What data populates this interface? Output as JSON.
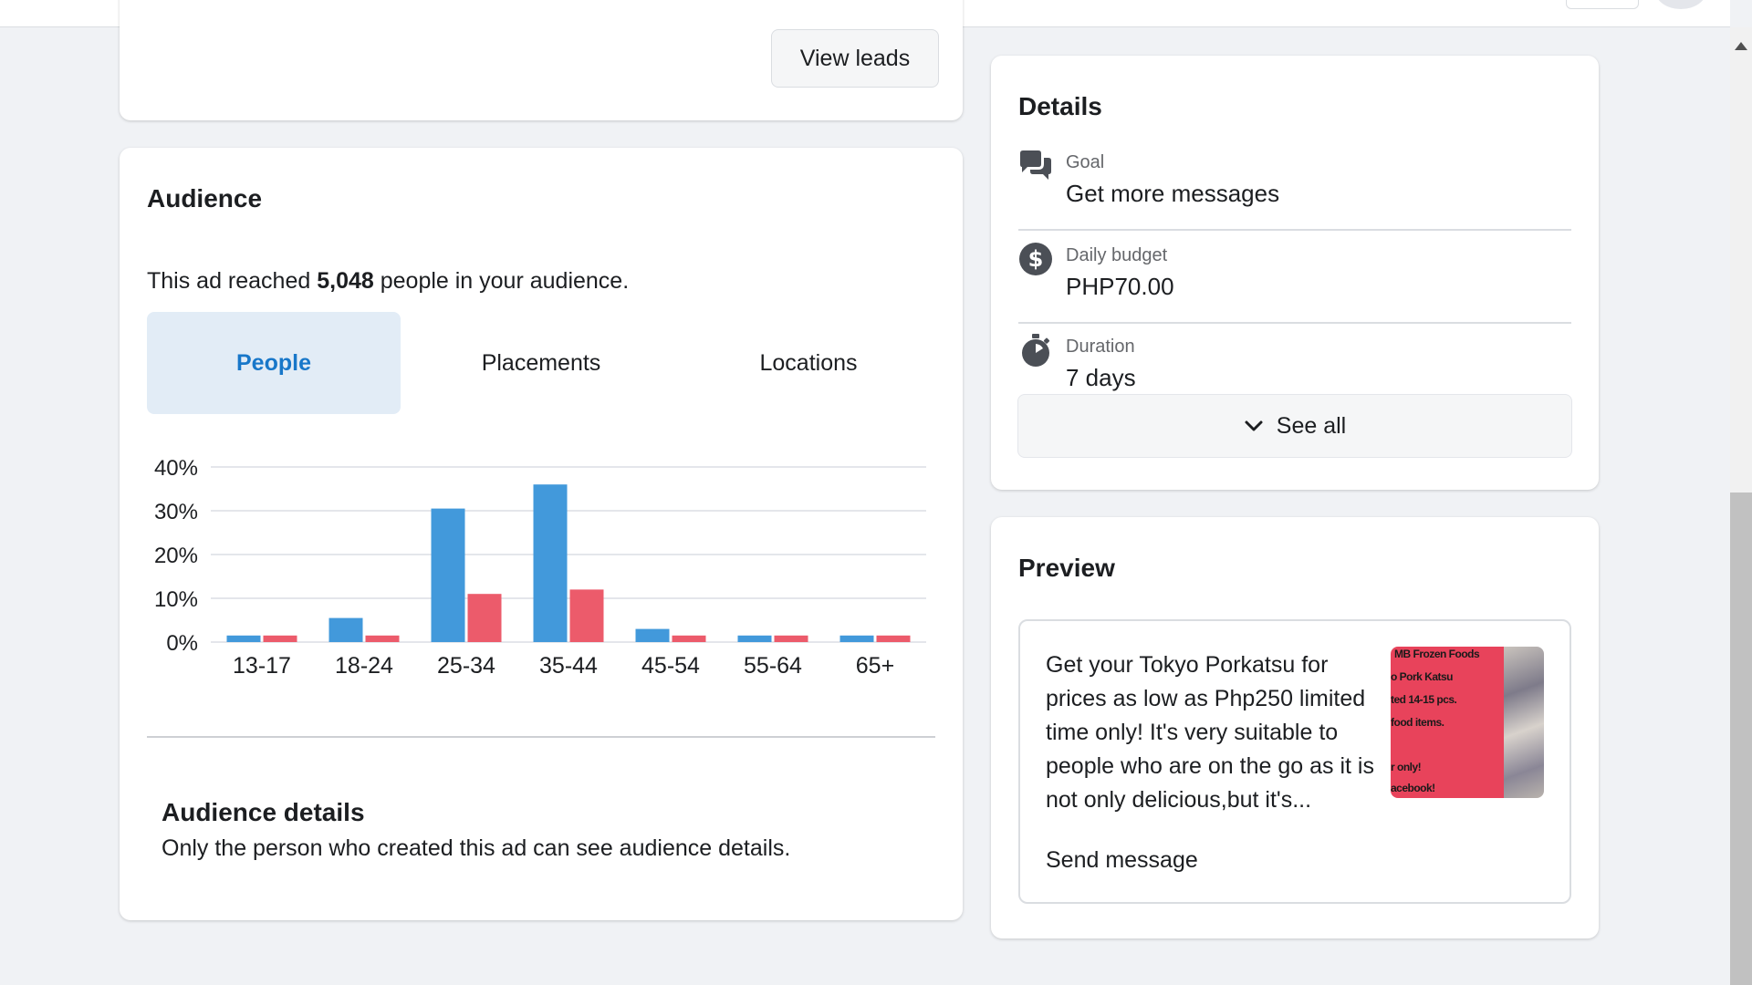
{
  "top_card": {
    "view_leads_label": "View leads"
  },
  "audience": {
    "title": "Audience",
    "reach_prefix": "This ad reached ",
    "reach_count": "5,048",
    "reach_suffix": " people in your audience.",
    "tabs": [
      {
        "label": "People",
        "active": true
      },
      {
        "label": "Placements",
        "active": false
      },
      {
        "label": "Locations",
        "active": false
      }
    ],
    "details_title": "Audience details",
    "details_text": "Only the person who created this ad can see audience details."
  },
  "chart_data": {
    "type": "bar",
    "categories": [
      "13-17",
      "18-24",
      "25-34",
      "35-44",
      "45-54",
      "55-64",
      "65+"
    ],
    "series": [
      {
        "values": [
          1.5,
          5.5,
          30.5,
          36,
          3,
          1.5,
          1.5
        ],
        "color": "#4299db"
      },
      {
        "values": [
          1.5,
          1.5,
          11,
          12,
          1.5,
          1.5,
          1.5
        ],
        "color": "#ec5b6b"
      }
    ],
    "yticks": [
      "0%",
      "10%",
      "20%",
      "30%",
      "40%"
    ],
    "ylim": [
      0,
      40
    ],
    "grid": true
  },
  "details": {
    "title": "Details",
    "rows": [
      {
        "icon": "chat-bubbles-icon",
        "label": "Goal",
        "value": "Get more messages"
      },
      {
        "icon": "dollar-icon",
        "label": "Daily budget",
        "value": "PHP70.00"
      },
      {
        "icon": "stopwatch-icon",
        "label": "Duration",
        "value": "7 days"
      }
    ],
    "see_all_label": "See all"
  },
  "preview": {
    "title": "Preview",
    "text": "Get your Tokyo Porkatsu for prices as low as Php250 limited time only! It's very suitable to people who are on the go as it is not only delicious,but it's...",
    "image_lines": [
      "MB Frozen Foods",
      "o Pork Katsu",
      "ted 14-15 pcs.",
      "food items.",
      "r only!",
      "acebook!"
    ],
    "cta_label": "Send message"
  },
  "colors": {
    "accent_blue": "#1877c9",
    "active_tab_bg": "#e2ecf6",
    "bar_blue": "#4299db",
    "bar_red": "#ec5b6b",
    "image_pink": "#e8435b"
  }
}
